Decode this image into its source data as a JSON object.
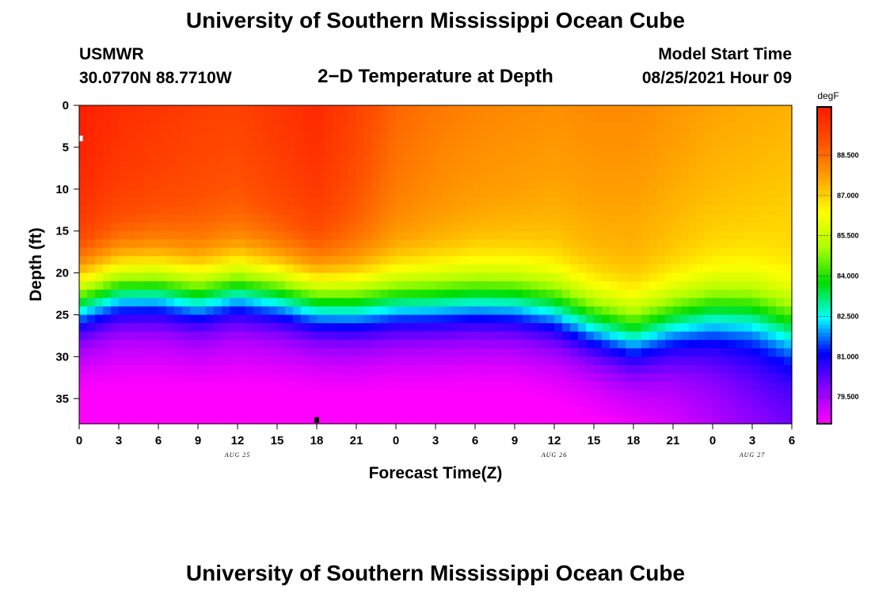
{
  "header": {
    "title": "University of Southern Mississippi Ocean Cube",
    "station": "USMWR",
    "coords": "30.0770N  88.7710W",
    "plot_title": "2−D Temperature at Depth",
    "model_label": "Model Start Time",
    "model_time": "08/25/2021 Hour 09"
  },
  "footer": {
    "title": "University of Southern Mississippi Ocean Cube"
  },
  "chart_data": {
    "type": "heatmap",
    "title": "2-D Temperature at Depth",
    "xlabel": "Forecast Time(Z)",
    "ylabel": "Depth (ft)",
    "x_range_hours": [
      0,
      54
    ],
    "y_range_ft": [
      0,
      38
    ],
    "x_ticks": [
      {
        "h": 0,
        "label": "0"
      },
      {
        "h": 3,
        "label": "3"
      },
      {
        "h": 6,
        "label": "6"
      },
      {
        "h": 9,
        "label": "9"
      },
      {
        "h": 12,
        "label": "12"
      },
      {
        "h": 15,
        "label": "15"
      },
      {
        "h": 18,
        "label": "18"
      },
      {
        "h": 21,
        "label": "21"
      },
      {
        "h": 24,
        "label": "0"
      },
      {
        "h": 27,
        "label": "3"
      },
      {
        "h": 30,
        "label": "6"
      },
      {
        "h": 33,
        "label": "9"
      },
      {
        "h": 36,
        "label": "12"
      },
      {
        "h": 39,
        "label": "15"
      },
      {
        "h": 42,
        "label": "18"
      },
      {
        "h": 45,
        "label": "21"
      },
      {
        "h": 48,
        "label": "0"
      },
      {
        "h": 51,
        "label": "3"
      },
      {
        "h": 54,
        "label": "6"
      }
    ],
    "date_labels": [
      {
        "h": 12,
        "label": "AUG 25"
      },
      {
        "h": 36,
        "label": "AUG 26"
      },
      {
        "h": 51,
        "label": "AUG 27"
      }
    ],
    "y_ticks": [
      0,
      5,
      10,
      15,
      20,
      25,
      30,
      35
    ],
    "colorbar": {
      "unit": "degF",
      "min": 78.5,
      "max": 90.3,
      "labels": [
        "88.500",
        "87.000",
        "85.500",
        "84.000",
        "82.500",
        "81.000",
        "79.500"
      ],
      "label_values": [
        88.5,
        87.0,
        85.5,
        84.0,
        82.5,
        81.0,
        79.5
      ]
    },
    "thermocline": {
      "times_h": [
        0,
        3,
        6,
        9,
        12,
        15,
        18,
        21,
        24,
        27,
        30,
        33,
        36,
        39,
        42,
        45,
        48,
        51,
        54
      ],
      "mid_depth_ft": [
        23.0,
        21.6,
        21.6,
        22.5,
        21.6,
        22.2,
        23.2,
        23.5,
        23.2,
        23.2,
        23.0,
        23.2,
        24.0,
        25.8,
        27.0,
        25.5,
        24.5,
        24.5,
        26.0
      ],
      "surface_temp_f": [
        89.8,
        89.4,
        89.2,
        89.0,
        88.9,
        89.2,
        89.5,
        88.9,
        88.2,
        87.9,
        87.7,
        87.6,
        87.5,
        87.6,
        87.6,
        87.4,
        87.2,
        87.1,
        87.0
      ],
      "bottom_temp_f": [
        78.6,
        78.6,
        78.6,
        78.6,
        78.6,
        78.6,
        78.6,
        78.6,
        78.6,
        78.6,
        78.6,
        78.6,
        78.7,
        78.8,
        79.0,
        79.3,
        79.7,
        80.1,
        80.4
      ]
    },
    "markers": [
      {
        "name": "surface-marker",
        "h": 0.1,
        "depth_ft": 4.0,
        "color": "#ffffff"
      },
      {
        "name": "time-marker",
        "h": 18.0,
        "depth_ft": 37.6,
        "color": "#000000"
      }
    ]
  },
  "colors": {
    "background": "#ffffff",
    "frame": "#000000",
    "scale": [
      "#ff00ff",
      "#8a00ff",
      "#0000ff",
      "#00ffff",
      "#00dd00",
      "#aaff00",
      "#ffff00",
      "#ffa000",
      "#ff5000",
      "#ff1a00"
    ]
  }
}
